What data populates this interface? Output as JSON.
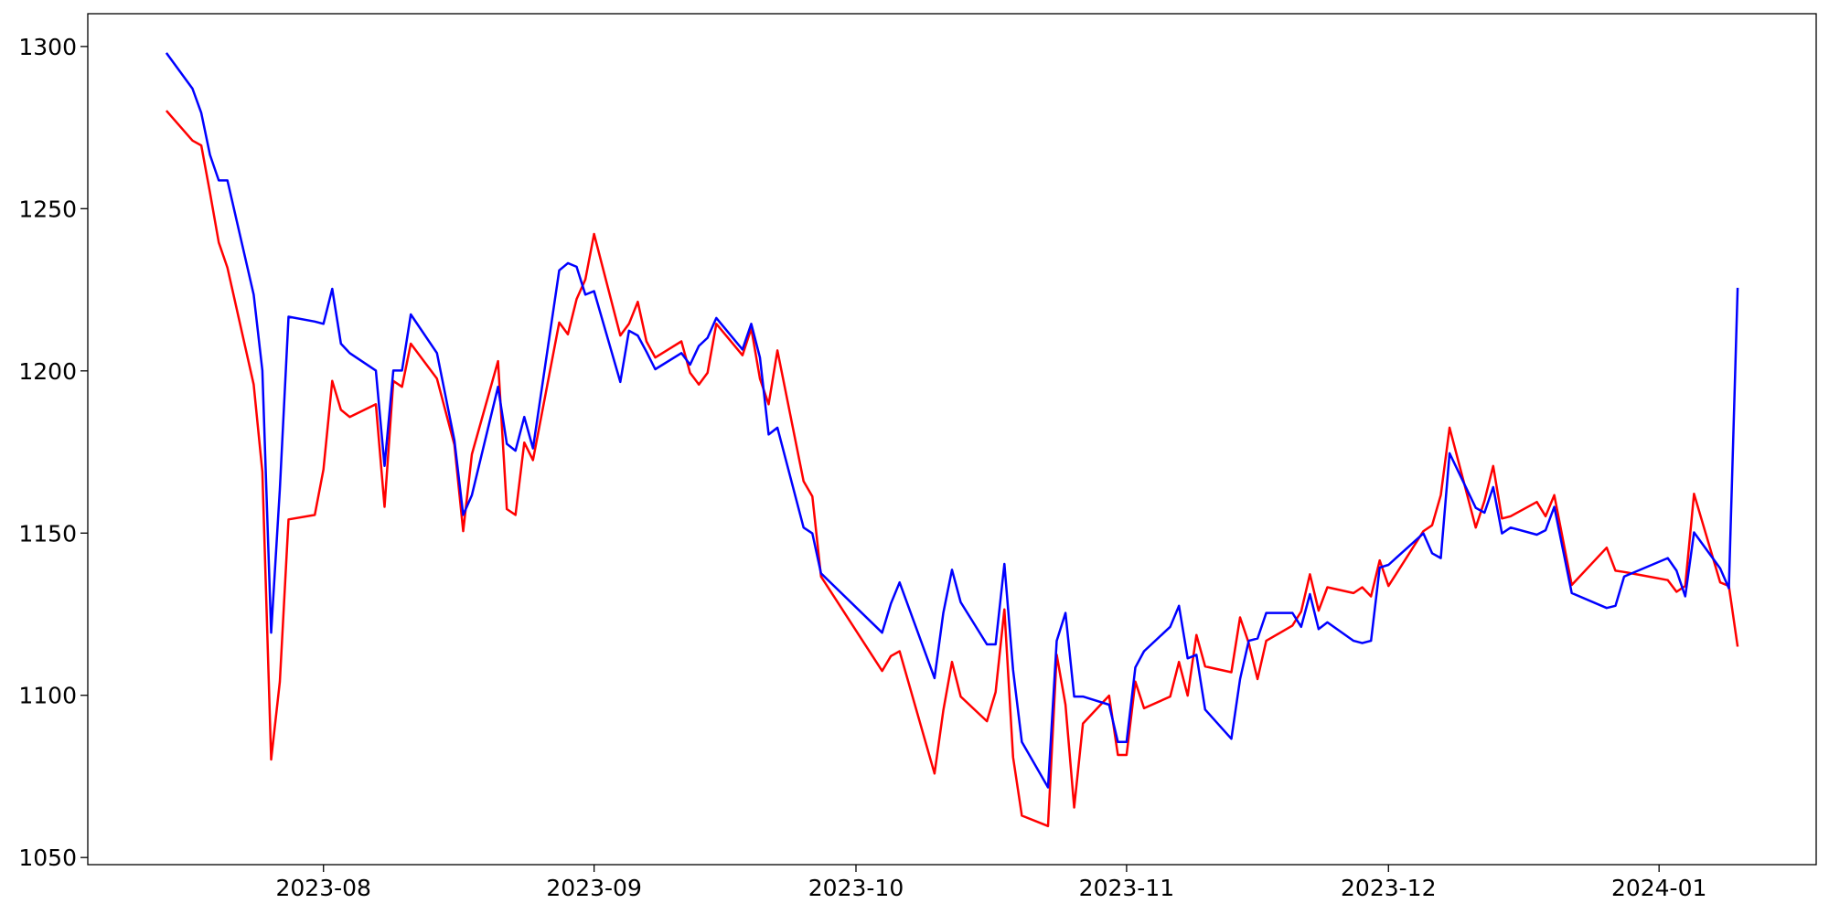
{
  "chart_data": {
    "type": "line",
    "x": [
      "2023-07-14",
      "2023-07-17",
      "2023-07-18",
      "2023-07-19",
      "2023-07-20",
      "2023-07-21",
      "2023-07-24",
      "2023-07-25",
      "2023-07-26",
      "2023-07-27",
      "2023-07-28",
      "2023-07-31",
      "2023-08-01",
      "2023-08-02",
      "2023-08-03",
      "2023-08-04",
      "2023-08-07",
      "2023-08-08",
      "2023-08-09",
      "2023-08-10",
      "2023-08-11",
      "2023-08-14",
      "2023-08-16",
      "2023-08-17",
      "2023-08-18",
      "2023-08-21",
      "2023-08-22",
      "2023-08-23",
      "2023-08-24",
      "2023-08-25",
      "2023-08-28",
      "2023-08-29",
      "2023-08-30",
      "2023-08-31",
      "2023-09-01",
      "2023-09-04",
      "2023-09-05",
      "2023-09-06",
      "2023-09-07",
      "2023-09-08",
      "2023-09-11",
      "2023-09-12",
      "2023-09-13",
      "2023-09-14",
      "2023-09-15",
      "2023-09-18",
      "2023-09-19",
      "2023-09-20",
      "2023-09-21",
      "2023-09-22",
      "2023-09-25",
      "2023-09-26",
      "2023-09-27",
      "2023-10-04",
      "2023-10-05",
      "2023-10-06",
      "2023-10-10",
      "2023-10-11",
      "2023-10-12",
      "2023-10-13",
      "2023-10-16",
      "2023-10-17",
      "2023-10-18",
      "2023-10-19",
      "2023-10-20",
      "2023-10-23",
      "2023-10-24",
      "2023-10-25",
      "2023-10-26",
      "2023-10-27",
      "2023-10-30",
      "2023-10-31",
      "2023-11-01",
      "2023-11-02",
      "2023-11-03",
      "2023-11-06",
      "2023-11-07",
      "2023-11-08",
      "2023-11-09",
      "2023-11-10",
      "2023-11-13",
      "2023-11-14",
      "2023-11-15",
      "2023-11-16",
      "2023-11-17",
      "2023-11-20",
      "2023-11-21",
      "2023-11-22",
      "2023-11-23",
      "2023-11-24",
      "2023-11-27",
      "2023-11-28",
      "2023-11-29",
      "2023-11-30",
      "2023-12-01",
      "2023-12-05",
      "2023-12-06",
      "2023-12-07",
      "2023-12-08",
      "2023-12-11",
      "2023-12-12",
      "2023-12-13",
      "2023-12-14",
      "2023-12-15",
      "2023-12-18",
      "2023-12-19",
      "2023-12-20",
      "2023-12-22",
      "2023-12-26",
      "2023-12-27",
      "2023-12-28",
      "2024-01-02",
      "2024-01-03",
      "2024-01-04",
      "2024-01-05",
      "2024-01-08",
      "2024-01-09",
      "2024-01-10"
    ],
    "series": [
      {
        "color": "#ff0000",
        "values": [
          1280.2,
          1271,
          1269.5,
          1255,
          1239.6,
          1231.8,
          1195.8,
          1168.9,
          1080.2,
          1104.2,
          1154.2,
          1155.6,
          1169.6,
          1196.9,
          1188,
          1185.8,
          1189.7,
          1158.1,
          1196.9,
          1195.1,
          1208.4,
          1197.6,
          1177.2,
          1150.6,
          1174.3,
          1203,
          1157.4,
          1155.6,
          1177.9,
          1172.5,
          1214.9,
          1211.3,
          1222.1,
          1228.2,
          1242.2,
          1210.9,
          1214.5,
          1221.3,
          1209.1,
          1204.1,
          1209.1,
          1199.4,
          1195.8,
          1199.4,
          1214.5,
          1204.8,
          1213.1,
          1197.6,
          1189.7,
          1206.3,
          1166,
          1161.3,
          1136.6,
          1107.5,
          1112.1,
          1113.6,
          1075.9,
          1095.3,
          1110.3,
          1099.6,
          1092,
          1101,
          1126.5,
          1080.9,
          1062.9,
          1059.7,
          1112.5,
          1097.1,
          1065.4,
          1091.3,
          1099.9,
          1081.6,
          1081.6,
          1104.2,
          1096,
          1099.6,
          1110.3,
          1099.9,
          1118.6,
          1108.9,
          1107.1,
          1124,
          1116.1,
          1105,
          1116.8,
          1121.5,
          1125.8,
          1137.3,
          1126.1,
          1133.3,
          1131.5,
          1133.3,
          1130.5,
          1141.6,
          1133.7,
          1150.6,
          1152.4,
          1161.7,
          1182.5,
          1151.7,
          1160,
          1170.7,
          1154.5,
          1155.2,
          1159.6,
          1155.2,
          1161.7,
          1134,
          1145.5,
          1138.4,
          1138,
          1135.5,
          1131.9,
          1133.7,
          1162.1,
          1134.8,
          1133.7,
          1115
        ]
      },
      {
        "color": "#0000ff",
        "values": [
          1298,
          1287,
          1279.5,
          1266.6,
          1258.7,
          1258.7,
          1223.5,
          1200.1,
          1119.3,
          1163.5,
          1216.7,
          1215.2,
          1214.5,
          1225.3,
          1208.4,
          1205.5,
          1200.1,
          1170.7,
          1200.1,
          1200.1,
          1217.4,
          1205.5,
          1178.6,
          1155.6,
          1161.7,
          1195.1,
          1177.5,
          1175.4,
          1185.8,
          1176.1,
          1231,
          1233.2,
          1232.1,
          1223.5,
          1224.6,
          1196.6,
          1212.4,
          1210.9,
          1205.9,
          1200.5,
          1205.5,
          1201.9,
          1207.7,
          1210.2,
          1216.3,
          1206.6,
          1214.5,
          1204.1,
          1180.4,
          1182.5,
          1151.7,
          1149.9,
          1137.6,
          1119.3,
          1128.3,
          1134.8,
          1105.3,
          1125.4,
          1138.7,
          1128.7,
          1115.7,
          1115.7,
          1140.5,
          1107.8,
          1085.6,
          1071.6,
          1116.8,
          1125.4,
          1099.6,
          1099.6,
          1097.1,
          1085.6,
          1085.6,
          1108.6,
          1113.6,
          1121.1,
          1127.6,
          1111.4,
          1112.5,
          1095.6,
          1086.6,
          1105,
          1116.8,
          1117.5,
          1125.4,
          1125.4,
          1121.1,
          1131.2,
          1120.4,
          1122.5,
          1116.8,
          1116.1,
          1116.8,
          1139.4,
          1140.2,
          1149.9,
          1143.8,
          1142.3,
          1174.6,
          1157.8,
          1156.3,
          1164.2,
          1149.9,
          1151.7,
          1149.5,
          1150.9,
          1158.1,
          1131.5,
          1126.9,
          1127.6,
          1136.6,
          1142.3,
          1138.4,
          1130.5,
          1150.2,
          1139.1,
          1133,
          1225.6
        ]
      }
    ],
    "xlim": [
      "2023-07-05",
      "2024-01-19"
    ],
    "xticks": [
      {
        "value": "2023-08-01",
        "label": "2023-08"
      },
      {
        "value": "2023-09-01",
        "label": "2023-09"
      },
      {
        "value": "2023-10-01",
        "label": "2023-10"
      },
      {
        "value": "2023-11-01",
        "label": "2023-11"
      },
      {
        "value": "2023-12-01",
        "label": "2023-12"
      },
      {
        "value": "2024-01-01",
        "label": "2024-01"
      }
    ],
    "ylim": [
      1047.8,
      1310.1
    ],
    "yticks": [
      1050,
      1100,
      1150,
      1200,
      1250,
      1300
    ],
    "grid": false
  }
}
